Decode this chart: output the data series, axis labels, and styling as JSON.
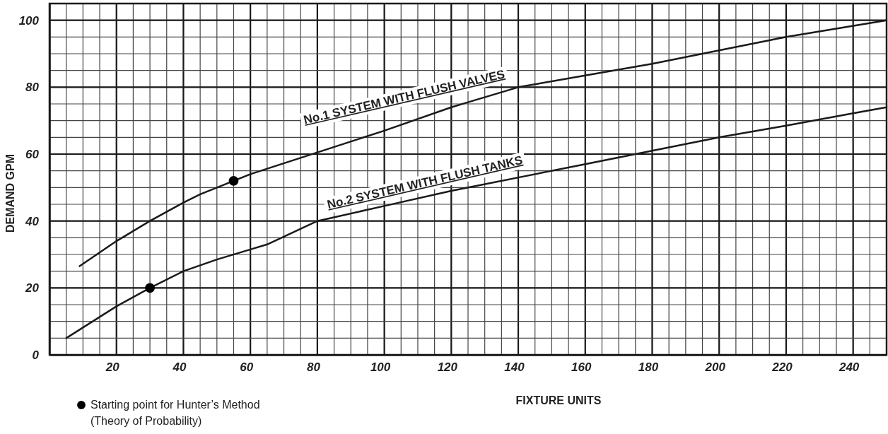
{
  "chart_data": {
    "type": "line",
    "xlabel": "FIXTURE UNITS",
    "ylabel": "DEMAND GPM",
    "xlim": [
      0,
      250
    ],
    "ylim": [
      0,
      105
    ],
    "xticks": [
      20,
      40,
      60,
      80,
      100,
      120,
      140,
      160,
      180,
      200,
      220,
      240
    ],
    "yticks": [
      0,
      20,
      40,
      60,
      80,
      100
    ],
    "grid": true,
    "legend": "bottom left",
    "line_style": "solid",
    "marker": "none",
    "series": [
      {
        "name": "No.1 SYSTEM WITH FLUSH VALVES",
        "color": "#1a1a1a",
        "x": [
          9,
          20,
          30,
          40,
          45,
          55,
          60,
          80,
          100,
          120,
          125,
          140,
          160,
          180,
          200,
          220,
          250
        ],
        "values": [
          26.5,
          34,
          40,
          45.5,
          48,
          52,
          54,
          60.5,
          67,
          74,
          75.5,
          80,
          83.5,
          87,
          91,
          95,
          100
        ]
      },
      {
        "name": "No.2 SYSTEM WITH FLUSH TANKS",
        "color": "#1a1a1a",
        "x": [
          5,
          20,
          30,
          40,
          50,
          60,
          65,
          80,
          100,
          120,
          140,
          160,
          180,
          200,
          220,
          240,
          250
        ],
        "values": [
          5,
          14.5,
          20,
          25,
          28.5,
          31.5,
          33,
          40,
          44.5,
          49,
          53,
          57,
          61,
          65,
          68.5,
          72.2,
          74
        ]
      },
      {
        "type": "scatter",
        "marker": "circle",
        "name": "Starting point for Hunter’s Method (Theory of Probability)",
        "color": "#000000",
        "x": [
          55,
          30
        ],
        "values": [
          52,
          20
        ]
      }
    ]
  }
}
